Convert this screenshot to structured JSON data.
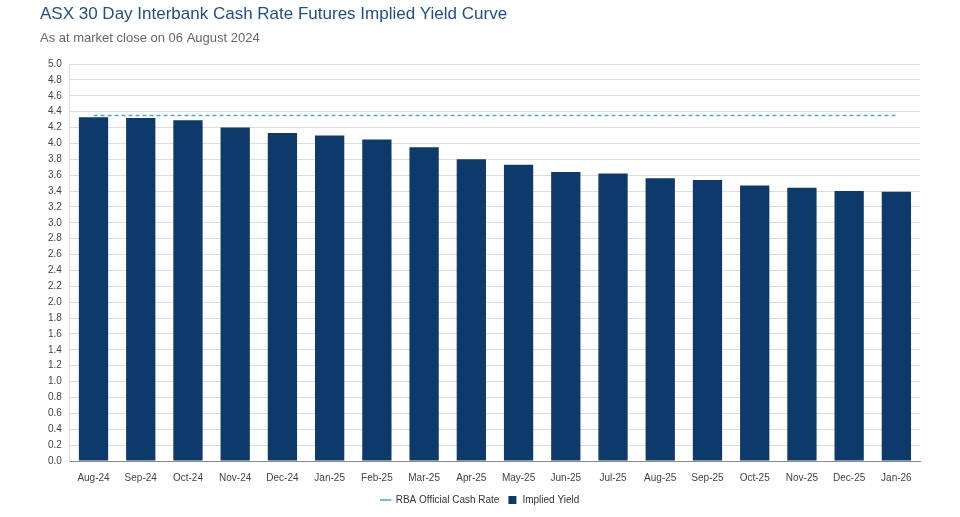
{
  "chart_data": {
    "type": "bar",
    "title": "ASX 30 Day Interbank Cash Rate Futures Implied Yield Curve",
    "subtitle": "As at market close on 06 August 2024",
    "categories": [
      "Aug-24",
      "Sep-24",
      "Oct-24",
      "Nov-24",
      "Dec-24",
      "Jan-25",
      "Feb-25",
      "Mar-25",
      "Apr-25",
      "May-25",
      "Jun-25",
      "Jul-25",
      "Aug-25",
      "Sep-25",
      "Oct-25",
      "Nov-25",
      "Dec-25",
      "Jan-26"
    ],
    "series": [
      {
        "name": "Implied Yield",
        "type": "bar",
        "color": "#0d3a6b",
        "values": [
          4.33,
          4.32,
          4.29,
          4.2,
          4.13,
          4.1,
          4.05,
          3.95,
          3.8,
          3.73,
          3.64,
          3.62,
          3.56,
          3.54,
          3.47,
          3.44,
          3.4,
          3.39
        ]
      },
      {
        "name": "RBA Official Cash Rate",
        "type": "line",
        "color": "#3fa9e0",
        "line_style": "dashed",
        "values": [
          4.35,
          4.35,
          4.35,
          4.35,
          4.35,
          4.35,
          4.35,
          4.35,
          4.35,
          4.35,
          4.35,
          4.35,
          4.35,
          4.35,
          4.35,
          4.35,
          4.35,
          4.35
        ]
      }
    ],
    "ylim": [
      0,
      5
    ],
    "yticks": [
      {
        "value": 0,
        "label": "0.0"
      },
      0.2,
      0.4,
      0.6,
      0.8,
      {
        "value": 1,
        "label": "1.0"
      },
      1.2,
      1.4,
      1.6,
      1.8,
      {
        "value": 2,
        "label": "2.0"
      },
      2.2,
      2.4,
      2.6,
      2.8,
      {
        "value": 3,
        "label": "3.0"
      },
      3.2,
      3.4,
      3.6,
      3.8,
      {
        "value": 4,
        "label": "4.0"
      },
      4.2,
      4.4,
      4.6,
      4.8,
      {
        "value": 5,
        "label": "5.0"
      }
    ],
    "grid": true,
    "legend": "bottom"
  }
}
